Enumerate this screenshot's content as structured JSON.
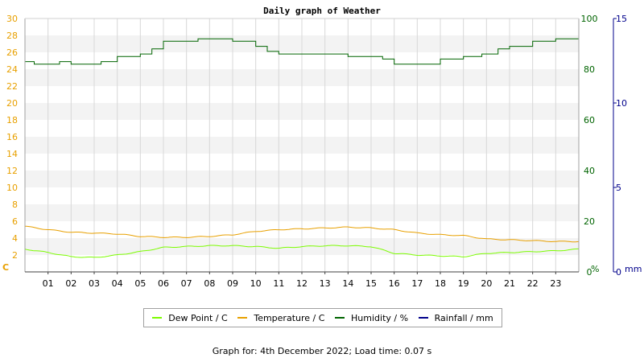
{
  "chart_data": {
    "type": "line",
    "title": "Daily graph of Weather",
    "x": {
      "tick_labels": [
        "01",
        "02",
        "03",
        "04",
        "05",
        "06",
        "07",
        "08",
        "09",
        "10",
        "11",
        "12",
        "13",
        "14",
        "15",
        "16",
        "17",
        "18",
        "19",
        "20",
        "21",
        "22",
        "23"
      ],
      "range_hours": [
        0,
        24
      ]
    },
    "axes": {
      "left": {
        "unit": "C",
        "range": [
          0,
          30
        ],
        "ticks": [
          0,
          2,
          4,
          6,
          8,
          10,
          12,
          14,
          16,
          18,
          20,
          22,
          24,
          26,
          28,
          30
        ],
        "color": "#e8a000"
      },
      "right1": {
        "unit": "%",
        "range": [
          0,
          100
        ],
        "ticks": [
          0,
          20,
          40,
          60,
          80,
          100
        ],
        "color": "#006400"
      },
      "right2": {
        "unit": "mm",
        "range": [
          0,
          15
        ],
        "ticks": [
          0,
          5,
          10,
          15
        ],
        "color": "#00008b"
      }
    },
    "grid": true,
    "legend_position": "bottom",
    "series": [
      {
        "name": "Dew Point / C",
        "color": "#7cfc00",
        "axis": "left",
        "points": [
          [
            0,
            2.7
          ],
          [
            1,
            2.3
          ],
          [
            2,
            1.8
          ],
          [
            3,
            1.7
          ],
          [
            4,
            2.0
          ],
          [
            5,
            2.4
          ],
          [
            6,
            2.9
          ],
          [
            7,
            3.0
          ],
          [
            8,
            3.1
          ],
          [
            9,
            3.1
          ],
          [
            10,
            3.0
          ],
          [
            11,
            2.8
          ],
          [
            12,
            3.0
          ],
          [
            13,
            3.1
          ],
          [
            14,
            3.1
          ],
          [
            15,
            3.0
          ],
          [
            16,
            2.2
          ],
          [
            17,
            2.0
          ],
          [
            18,
            1.9
          ],
          [
            19,
            1.8
          ],
          [
            20,
            2.2
          ],
          [
            21,
            2.3
          ],
          [
            22,
            2.4
          ],
          [
            23,
            2.5
          ],
          [
            24,
            2.7
          ]
        ]
      },
      {
        "name": "Temperature / C",
        "color": "#e8a000",
        "axis": "left",
        "points": [
          [
            0,
            5.4
          ],
          [
            1,
            5.0
          ],
          [
            2,
            4.7
          ],
          [
            3,
            4.6
          ],
          [
            4,
            4.5
          ],
          [
            5,
            4.2
          ],
          [
            6,
            4.1
          ],
          [
            7,
            4.1
          ],
          [
            8,
            4.2
          ],
          [
            9,
            4.4
          ],
          [
            10,
            4.8
          ],
          [
            11,
            5.0
          ],
          [
            12,
            5.1
          ],
          [
            13,
            5.2
          ],
          [
            14,
            5.3
          ],
          [
            15,
            5.2
          ],
          [
            16,
            5.0
          ],
          [
            17,
            4.6
          ],
          [
            18,
            4.4
          ],
          [
            19,
            4.3
          ],
          [
            20,
            3.9
          ],
          [
            21,
            3.8
          ],
          [
            22,
            3.7
          ],
          [
            23,
            3.6
          ],
          [
            24,
            3.6
          ]
        ]
      },
      {
        "name": "Humidity / %",
        "color": "#006400",
        "axis": "right1",
        "points": [
          [
            0,
            83
          ],
          [
            0.4,
            82
          ],
          [
            1.5,
            83
          ],
          [
            2,
            82
          ],
          [
            3,
            82
          ],
          [
            3.3,
            83
          ],
          [
            4,
            85
          ],
          [
            5,
            86
          ],
          [
            5.5,
            88
          ],
          [
            6,
            91
          ],
          [
            7,
            91
          ],
          [
            7.5,
            92
          ],
          [
            8.5,
            92
          ],
          [
            9,
            91
          ],
          [
            10,
            89
          ],
          [
            10.5,
            87
          ],
          [
            11,
            86
          ],
          [
            12,
            86
          ],
          [
            13,
            86
          ],
          [
            14,
            85
          ],
          [
            15,
            85
          ],
          [
            15.5,
            84
          ],
          [
            16,
            82
          ],
          [
            17,
            82
          ],
          [
            18,
            84
          ],
          [
            19,
            85
          ],
          [
            19.8,
            86
          ],
          [
            20.5,
            88
          ],
          [
            21,
            89
          ],
          [
            22,
            91
          ],
          [
            23,
            92
          ],
          [
            24,
            93
          ]
        ]
      },
      {
        "name": "Rainfall / mm",
        "color": "#00008b",
        "axis": "right2",
        "points": [
          [
            0,
            0
          ],
          [
            24,
            0
          ]
        ]
      }
    ]
  },
  "caption": "Graph for: 4th December 2022; Load time: 0.07 s"
}
